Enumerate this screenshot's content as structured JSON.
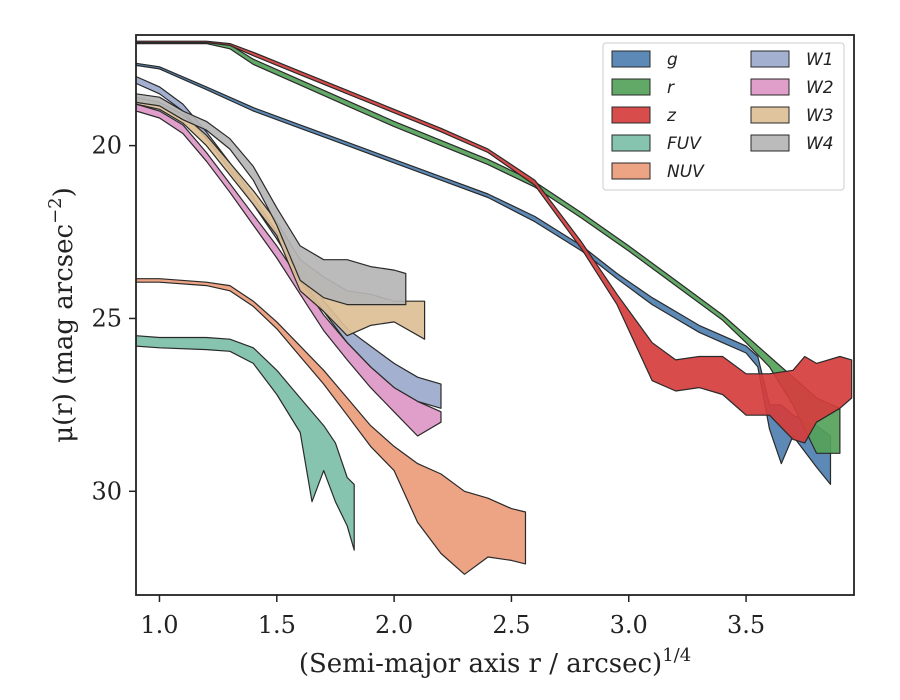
{
  "chart_data": {
    "type": "area",
    "xlabel": "(Semi-major axis r / arcsec)",
    "xlabel_exponent": "1/4",
    "ylabel": "μ(r) (mag arcsec",
    "ylabel_exponent": "−2",
    "ylabel_suffix": ")",
    "xlim": [
      0.9,
      3.96
    ],
    "ylim": [
      33.0,
      16.8
    ],
    "y_inverted": true,
    "xticks": [
      1.0,
      1.5,
      2.0,
      2.5,
      3.0,
      3.5
    ],
    "xtick_labels": [
      "1.0",
      "1.5",
      "2.0",
      "2.5",
      "3.0",
      "3.5"
    ],
    "yticks": [
      20,
      25,
      30
    ],
    "ytick_labels": [
      "20",
      "25",
      "30"
    ],
    "grid": false,
    "legend_placement": "top-right",
    "legend_columns": 2,
    "series": [
      {
        "name": "g",
        "color": "#4e7fb0",
        "upper": [
          [
            0.9,
            17.62
          ],
          [
            1.0,
            17.72
          ],
          [
            1.2,
            18.3
          ],
          [
            1.4,
            18.9
          ],
          [
            1.6,
            19.4
          ],
          [
            1.8,
            19.9
          ],
          [
            2.0,
            20.4
          ],
          [
            2.2,
            20.9
          ],
          [
            2.4,
            21.4
          ],
          [
            2.6,
            22.05
          ],
          [
            2.8,
            22.9
          ],
          [
            2.95,
            23.7
          ],
          [
            3.1,
            24.4
          ],
          [
            3.2,
            24.8
          ],
          [
            3.3,
            25.2
          ],
          [
            3.4,
            25.5
          ],
          [
            3.5,
            25.8
          ],
          [
            3.55,
            26.1
          ],
          [
            3.6,
            27.5
          ],
          [
            3.65,
            27.5
          ],
          [
            3.7,
            27.8
          ],
          [
            3.8,
            28.1
          ],
          [
            3.86,
            28.4
          ]
        ],
        "lower": [
          [
            0.9,
            17.68
          ],
          [
            1.0,
            17.78
          ],
          [
            1.2,
            18.38
          ],
          [
            1.4,
            19.0
          ],
          [
            1.6,
            19.5
          ],
          [
            1.8,
            20.0
          ],
          [
            2.0,
            20.5
          ],
          [
            2.2,
            21.0
          ],
          [
            2.4,
            21.5
          ],
          [
            2.6,
            22.2
          ],
          [
            2.8,
            23.05
          ],
          [
            2.95,
            23.85
          ],
          [
            3.1,
            24.6
          ],
          [
            3.2,
            25.0
          ],
          [
            3.3,
            25.4
          ],
          [
            3.4,
            25.7
          ],
          [
            3.5,
            26.0
          ],
          [
            3.55,
            26.4
          ],
          [
            3.6,
            28.2
          ],
          [
            3.65,
            29.2
          ],
          [
            3.7,
            28.4
          ],
          [
            3.8,
            29.3
          ],
          [
            3.86,
            29.8
          ]
        ]
      },
      {
        "name": "r",
        "color": "#55a15a",
        "upper": [
          [
            0.9,
            17.0
          ],
          [
            1.0,
            17.0
          ],
          [
            1.2,
            17.0
          ],
          [
            1.3,
            17.08
          ],
          [
            1.4,
            17.5
          ],
          [
            1.6,
            18.1
          ],
          [
            1.8,
            18.7
          ],
          [
            2.0,
            19.3
          ],
          [
            2.2,
            19.85
          ],
          [
            2.4,
            20.4
          ],
          [
            2.6,
            21.05
          ],
          [
            2.8,
            21.95
          ],
          [
            3.0,
            22.9
          ],
          [
            3.2,
            23.9
          ],
          [
            3.4,
            24.9
          ],
          [
            3.5,
            25.5
          ],
          [
            3.6,
            26.1
          ],
          [
            3.7,
            26.7
          ],
          [
            3.8,
            27.3
          ],
          [
            3.9,
            27.6
          ]
        ],
        "lower": [
          [
            0.9,
            17.05
          ],
          [
            1.0,
            17.05
          ],
          [
            1.2,
            17.05
          ],
          [
            1.3,
            17.2
          ],
          [
            1.4,
            17.65
          ],
          [
            1.6,
            18.25
          ],
          [
            1.8,
            18.85
          ],
          [
            2.0,
            19.45
          ],
          [
            2.2,
            20.0
          ],
          [
            2.4,
            20.55
          ],
          [
            2.6,
            21.2
          ],
          [
            2.8,
            22.1
          ],
          [
            3.0,
            23.05
          ],
          [
            3.2,
            24.05
          ],
          [
            3.4,
            25.05
          ],
          [
            3.5,
            25.7
          ],
          [
            3.6,
            26.4
          ],
          [
            3.7,
            27.5
          ],
          [
            3.8,
            28.9
          ],
          [
            3.9,
            28.9
          ]
        ]
      },
      {
        "name": "z",
        "color": "#d63d3d",
        "upper": [
          [
            0.9,
            16.98
          ],
          [
            1.0,
            16.98
          ],
          [
            1.2,
            16.98
          ],
          [
            1.3,
            17.05
          ],
          [
            1.4,
            17.3
          ],
          [
            1.6,
            17.85
          ],
          [
            1.8,
            18.4
          ],
          [
            2.0,
            18.95
          ],
          [
            2.2,
            19.5
          ],
          [
            2.4,
            20.1
          ],
          [
            2.6,
            21.0
          ],
          [
            2.8,
            22.8
          ],
          [
            2.95,
            24.3
          ],
          [
            3.1,
            25.7
          ],
          [
            3.2,
            26.2
          ],
          [
            3.3,
            26.1
          ],
          [
            3.4,
            26.1
          ],
          [
            3.5,
            26.6
          ],
          [
            3.6,
            26.6
          ],
          [
            3.7,
            26.5
          ],
          [
            3.75,
            26.1
          ],
          [
            3.8,
            26.3
          ],
          [
            3.9,
            26.1
          ],
          [
            3.95,
            26.2
          ]
        ],
        "lower": [
          [
            0.9,
            17.02
          ],
          [
            1.0,
            17.02
          ],
          [
            1.2,
            17.02
          ],
          [
            1.3,
            17.1
          ],
          [
            1.4,
            17.4
          ],
          [
            1.6,
            17.95
          ],
          [
            1.8,
            18.5
          ],
          [
            2.0,
            19.05
          ],
          [
            2.2,
            19.6
          ],
          [
            2.4,
            20.2
          ],
          [
            2.6,
            21.15
          ],
          [
            2.8,
            23.0
          ],
          [
            2.95,
            24.6
          ],
          [
            3.1,
            26.8
          ],
          [
            3.2,
            27.1
          ],
          [
            3.3,
            27.0
          ],
          [
            3.4,
            27.2
          ],
          [
            3.5,
            27.8
          ],
          [
            3.6,
            27.8
          ],
          [
            3.7,
            28.5
          ],
          [
            3.75,
            28.6
          ],
          [
            3.8,
            28.0
          ],
          [
            3.9,
            27.6
          ],
          [
            3.95,
            27.3
          ]
        ]
      },
      {
        "name": "FUV",
        "color": "#7cbfa8",
        "upper": [
          [
            0.9,
            25.5
          ],
          [
            1.0,
            25.55
          ],
          [
            1.2,
            25.55
          ],
          [
            1.3,
            25.6
          ],
          [
            1.4,
            25.85
          ],
          [
            1.5,
            26.5
          ],
          [
            1.6,
            27.3
          ],
          [
            1.7,
            28.1
          ],
          [
            1.75,
            28.6
          ],
          [
            1.8,
            29.6
          ],
          [
            1.83,
            29.8
          ]
        ],
        "lower": [
          [
            0.9,
            25.8
          ],
          [
            1.0,
            25.85
          ],
          [
            1.2,
            25.9
          ],
          [
            1.3,
            25.95
          ],
          [
            1.4,
            26.3
          ],
          [
            1.5,
            27.2
          ],
          [
            1.6,
            28.3
          ],
          [
            1.65,
            30.3
          ],
          [
            1.7,
            29.4
          ],
          [
            1.75,
            30.3
          ],
          [
            1.8,
            31.0
          ],
          [
            1.83,
            31.7
          ]
        ]
      },
      {
        "name": "NUV",
        "color": "#eb9c7b",
        "upper": [
          [
            0.9,
            23.85
          ],
          [
            1.0,
            23.85
          ],
          [
            1.2,
            23.95
          ],
          [
            1.3,
            24.05
          ],
          [
            1.4,
            24.5
          ],
          [
            1.5,
            25.1
          ],
          [
            1.6,
            25.8
          ],
          [
            1.7,
            26.5
          ],
          [
            1.8,
            27.3
          ],
          [
            1.9,
            28.1
          ],
          [
            2.0,
            28.7
          ],
          [
            2.1,
            29.2
          ],
          [
            2.2,
            29.5
          ],
          [
            2.3,
            30.0
          ],
          [
            2.4,
            30.2
          ],
          [
            2.5,
            30.5
          ],
          [
            2.56,
            30.6
          ]
        ],
        "lower": [
          [
            0.9,
            23.95
          ],
          [
            1.0,
            23.95
          ],
          [
            1.2,
            24.05
          ],
          [
            1.3,
            24.2
          ],
          [
            1.4,
            24.65
          ],
          [
            1.5,
            25.3
          ],
          [
            1.6,
            26.1
          ],
          [
            1.7,
            26.9
          ],
          [
            1.8,
            27.8
          ],
          [
            1.9,
            28.7
          ],
          [
            2.0,
            29.4
          ],
          [
            2.1,
            30.9
          ],
          [
            2.2,
            31.8
          ],
          [
            2.3,
            32.4
          ],
          [
            2.4,
            31.9
          ],
          [
            2.5,
            32.0
          ],
          [
            2.56,
            32.1
          ]
        ]
      },
      {
        "name": "W1",
        "color": "#9ba9cc",
        "upper": [
          [
            0.9,
            18.0
          ],
          [
            1.0,
            18.3
          ],
          [
            1.1,
            18.8
          ],
          [
            1.2,
            19.6
          ],
          [
            1.3,
            20.5
          ],
          [
            1.4,
            21.5
          ],
          [
            1.5,
            22.5
          ],
          [
            1.6,
            23.5
          ],
          [
            1.7,
            24.5
          ],
          [
            1.8,
            25.3
          ],
          [
            1.9,
            25.8
          ],
          [
            2.0,
            26.3
          ],
          [
            2.1,
            26.7
          ],
          [
            2.2,
            26.9
          ]
        ],
        "lower": [
          [
            0.9,
            18.2
          ],
          [
            1.0,
            18.5
          ],
          [
            1.1,
            19.0
          ],
          [
            1.2,
            19.8
          ],
          [
            1.3,
            20.7
          ],
          [
            1.4,
            21.7
          ],
          [
            1.5,
            22.7
          ],
          [
            1.6,
            23.8
          ],
          [
            1.7,
            24.8
          ],
          [
            1.8,
            25.7
          ],
          [
            1.9,
            26.4
          ],
          [
            2.0,
            27.0
          ],
          [
            2.1,
            27.4
          ],
          [
            2.2,
            27.6
          ]
        ]
      },
      {
        "name": "W2",
        "color": "#dd97c6",
        "upper": [
          [
            0.9,
            18.8
          ],
          [
            1.0,
            19.0
          ],
          [
            1.1,
            19.4
          ],
          [
            1.2,
            20.2
          ],
          [
            1.3,
            21.1
          ],
          [
            1.4,
            22.0
          ],
          [
            1.5,
            22.9
          ],
          [
            1.6,
            23.9
          ],
          [
            1.7,
            24.9
          ],
          [
            1.8,
            25.7
          ],
          [
            1.9,
            26.4
          ],
          [
            2.0,
            27.0
          ],
          [
            2.1,
            27.4
          ],
          [
            2.2,
            27.7
          ]
        ],
        "lower": [
          [
            0.9,
            19.0
          ],
          [
            1.0,
            19.2
          ],
          [
            1.1,
            19.65
          ],
          [
            1.2,
            20.45
          ],
          [
            1.3,
            21.35
          ],
          [
            1.4,
            22.3
          ],
          [
            1.5,
            23.25
          ],
          [
            1.6,
            24.3
          ],
          [
            1.7,
            25.35
          ],
          [
            1.8,
            26.2
          ],
          [
            1.9,
            27.0
          ],
          [
            2.0,
            27.7
          ],
          [
            2.1,
            28.4
          ],
          [
            2.2,
            28.0
          ]
        ]
      },
      {
        "name": "W3",
        "color": "#ddbf96",
        "upper": [
          [
            0.9,
            18.6
          ],
          [
            1.0,
            18.75
          ],
          [
            1.1,
            19.1
          ],
          [
            1.2,
            19.7
          ],
          [
            1.3,
            20.5
          ],
          [
            1.4,
            21.3
          ],
          [
            1.5,
            22.2
          ],
          [
            1.6,
            23.3
          ],
          [
            1.7,
            23.8
          ],
          [
            1.8,
            24.2
          ],
          [
            1.9,
            24.3
          ],
          [
            2.0,
            24.5
          ],
          [
            2.13,
            24.5
          ]
        ],
        "lower": [
          [
            0.9,
            18.8
          ],
          [
            1.0,
            18.95
          ],
          [
            1.1,
            19.35
          ],
          [
            1.2,
            20.0
          ],
          [
            1.3,
            20.85
          ],
          [
            1.4,
            21.7
          ],
          [
            1.5,
            22.6
          ],
          [
            1.6,
            24.2
          ],
          [
            1.7,
            24.8
          ],
          [
            1.8,
            25.5
          ],
          [
            1.9,
            25.2
          ],
          [
            2.0,
            25.1
          ],
          [
            2.13,
            25.6
          ]
        ]
      },
      {
        "name": "W4",
        "color": "#b5b5b5",
        "upper": [
          [
            0.9,
            18.5
          ],
          [
            1.0,
            18.6
          ],
          [
            1.1,
            19.0
          ],
          [
            1.2,
            19.3
          ],
          [
            1.3,
            19.8
          ],
          [
            1.4,
            20.6
          ],
          [
            1.5,
            21.8
          ],
          [
            1.6,
            22.9
          ],
          [
            1.7,
            23.3
          ],
          [
            1.8,
            23.3
          ],
          [
            1.9,
            23.5
          ],
          [
            2.0,
            23.6
          ],
          [
            2.05,
            23.7
          ]
        ],
        "lower": [
          [
            0.9,
            18.75
          ],
          [
            1.0,
            18.85
          ],
          [
            1.1,
            19.25
          ],
          [
            1.2,
            19.55
          ],
          [
            1.3,
            20.1
          ],
          [
            1.4,
            21.0
          ],
          [
            1.5,
            22.3
          ],
          [
            1.6,
            23.9
          ],
          [
            1.7,
            24.4
          ],
          [
            1.8,
            24.6
          ],
          [
            1.9,
            24.6
          ],
          [
            2.0,
            24.6
          ],
          [
            2.05,
            24.6
          ]
        ]
      }
    ]
  }
}
